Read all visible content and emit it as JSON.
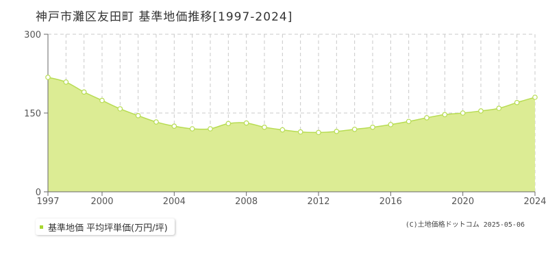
{
  "title": "神戸市灘区友田町 基準地価推移[1997-2024]",
  "legend": {
    "label": "基準地価 平均坪単価(万円/坪)"
  },
  "copyright": "(C)土地価格ドットコム 2025-05-06",
  "colors": {
    "fill": "#dcec94",
    "line": "#b7dc52",
    "marker_fill": "#ffffff",
    "marker_stroke": "#b7dc52",
    "swatch": "#a8d631",
    "grid": "#c8c8c8"
  },
  "chart_data": {
    "type": "area",
    "title": "神戸市灘区友田町 基準地価推移[1997-2024]",
    "xlabel": "",
    "ylabel": "",
    "xlim": [
      1997,
      2024
    ],
    "ylim": [
      0,
      300
    ],
    "x_ticks": [
      "1997",
      "2000",
      "2004",
      "2008",
      "2012",
      "2016",
      "2020",
      "2024"
    ],
    "y_ticks": [
      "0",
      "150",
      "300"
    ],
    "grid": true,
    "legend_position": "bottom-left",
    "series": [
      {
        "name": "基準地価 平均坪単価(万円/坪)",
        "x": [
          1997,
          1998,
          1999,
          2000,
          2001,
          2002,
          2003,
          2004,
          2005,
          2006,
          2007,
          2008,
          2009,
          2010,
          2011,
          2012,
          2013,
          2014,
          2015,
          2016,
          2017,
          2018,
          2019,
          2020,
          2021,
          2022,
          2023,
          2024
        ],
        "values": [
          218,
          209,
          190,
          174,
          158,
          145,
          133,
          125,
          120,
          120,
          130,
          131,
          123,
          118,
          114,
          113,
          115,
          119,
          123,
          128,
          134,
          141,
          147,
          150,
          154,
          159,
          170,
          180
        ]
      }
    ]
  }
}
